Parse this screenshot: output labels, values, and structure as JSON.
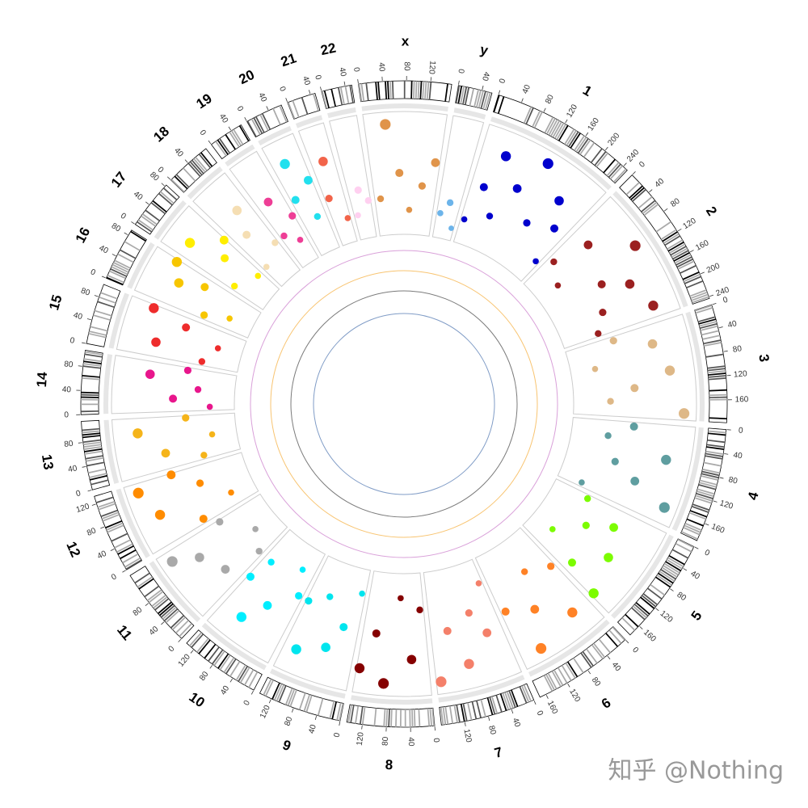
{
  "chart_data": {
    "type": "circos",
    "track_ylim": [
      0,
      10
    ],
    "watermark": "知乎 @Nothing",
    "chromosomes": [
      {
        "name": "1",
        "size": 249,
        "color": "#0000cd",
        "ticks": [
          0,
          40,
          80,
          120,
          160,
          200,
          240
        ],
        "points": [
          [
            10,
            2
          ],
          [
            30,
            5
          ],
          [
            50,
            8
          ],
          [
            70,
            3
          ],
          [
            100,
            6
          ],
          [
            130,
            9
          ],
          [
            160,
            4
          ],
          [
            190,
            7
          ],
          [
            220,
            5
          ],
          [
            240,
            2
          ]
        ]
      },
      {
        "name": "2",
        "size": 243,
        "color": "#9b2020",
        "ticks": [
          0,
          40,
          80,
          120,
          160,
          200,
          240
        ],
        "points": [
          [
            15,
            3
          ],
          [
            40,
            6
          ],
          [
            70,
            2
          ],
          [
            100,
            9
          ],
          [
            130,
            5
          ],
          [
            160,
            7
          ],
          [
            190,
            4
          ],
          [
            220,
            8
          ],
          [
            235,
            3
          ]
        ]
      },
      {
        "name": "3",
        "size": 198,
        "color": "#deb887",
        "ticks": [
          0,
          40,
          80,
          120,
          160
        ],
        "points": [
          [
            10,
            4
          ],
          [
            40,
            7
          ],
          [
            70,
            2
          ],
          [
            100,
            8
          ],
          [
            130,
            5
          ],
          [
            160,
            3
          ],
          [
            185,
            9
          ]
        ]
      },
      {
        "name": "4",
        "size": 191,
        "color": "#5f9ea0",
        "ticks": [
          0,
          40,
          80,
          120,
          160
        ],
        "points": [
          [
            10,
            5
          ],
          [
            40,
            3
          ],
          [
            70,
            8
          ],
          [
            100,
            4
          ],
          [
            130,
            6
          ],
          [
            160,
            9
          ],
          [
            180,
            2
          ]
        ]
      },
      {
        "name": "5",
        "size": 181,
        "color": "#7cfc00",
        "ticks": [
          0,
          40,
          80,
          120,
          160
        ],
        "points": [
          [
            10,
            3
          ],
          [
            40,
            6
          ],
          [
            70,
            4
          ],
          [
            100,
            7
          ],
          [
            130,
            2
          ],
          [
            160,
            5
          ],
          [
            175,
            8
          ]
        ]
      },
      {
        "name": "6",
        "size": 171,
        "color": "#ff8226",
        "ticks": [
          0,
          40,
          80,
          120,
          160
        ],
        "points": [
          [
            10,
            4
          ],
          [
            40,
            8
          ],
          [
            70,
            3
          ],
          [
            100,
            6
          ],
          [
            130,
            9
          ],
          [
            160,
            5
          ]
        ]
      },
      {
        "name": "7",
        "size": 159,
        "color": "#f4806a",
        "ticks": [
          0,
          40,
          80,
          120
        ],
        "points": [
          [
            10,
            2
          ],
          [
            35,
            6
          ],
          [
            60,
            4
          ],
          [
            90,
            8
          ],
          [
            120,
            5
          ],
          [
            150,
            9
          ]
        ]
      },
      {
        "name": "8",
        "size": 146,
        "color": "#850000",
        "ticks": [
          0,
          40,
          80,
          120
        ],
        "points": [
          [
            10,
            3
          ],
          [
            35,
            7
          ],
          [
            60,
            2
          ],
          [
            90,
            9
          ],
          [
            115,
            5
          ],
          [
            140,
            8
          ]
        ]
      },
      {
        "name": "9",
        "size": 141,
        "color": "#00e5ee",
        "ticks": [
          0,
          40,
          80,
          120
        ],
        "points": [
          [
            10,
            2
          ],
          [
            35,
            5
          ],
          [
            60,
            7
          ],
          [
            90,
            3
          ],
          [
            115,
            8
          ],
          [
            135,
            4
          ]
        ]
      },
      {
        "name": "10",
        "size": 136,
        "color": "#00eeff",
        "ticks": [
          0,
          40,
          80,
          120
        ],
        "points": [
          [
            10,
            4
          ],
          [
            35,
            2
          ],
          [
            60,
            6
          ],
          [
            90,
            8
          ],
          [
            115,
            3
          ],
          [
            130,
            5
          ]
        ]
      },
      {
        "name": "11",
        "size": 135,
        "color": "#a9a9a9",
        "ticks": [
          0,
          40,
          80
        ],
        "points": [
          [
            10,
            3
          ],
          [
            35,
            6
          ],
          [
            60,
            2
          ],
          [
            90,
            7
          ],
          [
            115,
            9
          ],
          [
            130,
            4
          ]
        ]
      },
      {
        "name": "12",
        "size": 133,
        "color": "#ff8c00",
        "ticks": [
          0,
          40,
          80,
          120
        ],
        "points": [
          [
            10,
            5
          ],
          [
            35,
            2
          ],
          [
            60,
            8
          ],
          [
            90,
            4
          ],
          [
            115,
            9
          ],
          [
            130,
            6
          ]
        ]
      },
      {
        "name": "13",
        "size": 115,
        "color": "#f5b41a",
        "ticks": [
          0,
          40,
          80
        ],
        "points": [
          [
            10,
            3
          ],
          [
            35,
            6
          ],
          [
            60,
            2
          ],
          [
            85,
            8
          ],
          [
            110,
            4
          ]
        ]
      },
      {
        "name": "14",
        "size": 107,
        "color": "#e8168c",
        "ticks": [
          0,
          40,
          80
        ],
        "points": [
          [
            10,
            2
          ],
          [
            30,
            5
          ],
          [
            55,
            3
          ],
          [
            80,
            7
          ],
          [
            100,
            4
          ]
        ]
      },
      {
        "name": "15",
        "size": 102,
        "color": "#ee2c2c",
        "ticks": [
          0,
          40,
          80
        ],
        "points": [
          [
            10,
            3
          ],
          [
            30,
            7
          ],
          [
            55,
            2
          ],
          [
            80,
            5
          ],
          [
            95,
            8
          ]
        ]
      },
      {
        "name": "16",
        "size": 90,
        "color": "#f7c600",
        "ticks": [
          0,
          40,
          80
        ],
        "points": [
          [
            10,
            4
          ],
          [
            30,
            2
          ],
          [
            50,
            7
          ],
          [
            70,
            5
          ],
          [
            85,
            8
          ]
        ]
      },
      {
        "name": "17",
        "size": 83,
        "color": "#ffee00",
        "ticks": [
          0,
          40,
          80
        ],
        "points": [
          [
            10,
            3
          ],
          [
            30,
            8
          ],
          [
            50,
            5
          ],
          [
            70,
            2
          ],
          [
            80,
            6
          ]
        ]
      },
      {
        "name": "18",
        "size": 78,
        "color": "#f5deb3",
        "ticks": [
          0,
          40
        ],
        "points": [
          [
            10,
            2
          ],
          [
            30,
            5
          ],
          [
            50,
            7
          ],
          [
            70,
            3
          ]
        ]
      },
      {
        "name": "19",
        "size": 59,
        "color": "#ee3e96",
        "ticks": [
          0,
          40
        ],
        "points": [
          [
            10,
            3
          ],
          [
            25,
            6
          ],
          [
            40,
            2
          ],
          [
            55,
            4
          ]
        ]
      },
      {
        "name": "20",
        "size": 63,
        "color": "#22e0ee",
        "ticks": [
          0,
          40
        ],
        "points": [
          [
            10,
            5
          ],
          [
            25,
            8
          ],
          [
            40,
            3
          ],
          [
            55,
            6
          ]
        ]
      },
      {
        "name": "21",
        "size": 48,
        "color": "#f2644a",
        "ticks": [
          0,
          40
        ],
        "points": [
          [
            10,
            4
          ],
          [
            25,
            7
          ],
          [
            40,
            2
          ]
        ]
      },
      {
        "name": "22",
        "size": 51,
        "color": "#ffd0f0",
        "ticks": [
          0,
          40
        ],
        "points": [
          [
            10,
            2
          ],
          [
            25,
            4
          ],
          [
            45,
            3
          ]
        ]
      },
      {
        "name": "x",
        "size": 155,
        "color": "#e0944a",
        "ticks": [
          0,
          40,
          80,
          120
        ],
        "points": [
          [
            15,
            3
          ],
          [
            40,
            9
          ],
          [
            65,
            5
          ],
          [
            90,
            2
          ],
          [
            120,
            4
          ],
          [
            145,
            6
          ]
        ]
      },
      {
        "name": "y",
        "size": 57,
        "color": "#6cb4ea",
        "ticks": [
          0,
          40
        ],
        "points": [
          [
            10,
            2
          ],
          [
            30,
            3
          ],
          [
            50,
            1
          ]
        ]
      }
    ]
  }
}
